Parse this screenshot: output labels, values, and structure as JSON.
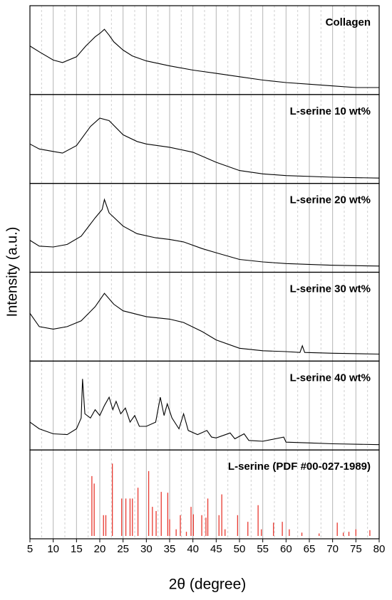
{
  "chart_data": {
    "type": "stacked",
    "xlabel": "2θ (degree)",
    "ylabel": "Intensity (a.u.)",
    "xlim": [
      5,
      80
    ],
    "xticks": [
      5,
      10,
      15,
      20,
      25,
      30,
      35,
      40,
      45,
      50,
      55,
      60,
      65,
      70,
      75,
      80
    ],
    "grid": true,
    "minor_grid": true,
    "panels": [
      {
        "type": "line",
        "title": "Collagen",
        "color": "#000000",
        "ylim": [
          0,
          100
        ],
        "x": [
          5,
          7,
          10,
          12,
          15,
          17,
          19,
          20,
          21,
          22,
          23,
          25,
          27,
          30,
          35,
          40,
          45,
          50,
          55,
          60,
          65,
          70,
          75,
          80
        ],
        "values": [
          55,
          48,
          38,
          35,
          42,
          55,
          66,
          70,
          75,
          68,
          60,
          50,
          43,
          37,
          31,
          26,
          22,
          18,
          14,
          11,
          9,
          7,
          5,
          5
        ]
      },
      {
        "type": "line",
        "title": "L-serine 10 wt%",
        "color": "#000000",
        "ylim": [
          0,
          100
        ],
        "x": [
          5,
          7,
          10,
          12,
          15,
          18,
          20,
          22,
          25,
          28,
          30,
          35,
          40,
          45,
          50,
          55,
          60,
          70,
          80
        ],
        "values": [
          44,
          38,
          35,
          33,
          42,
          65,
          75,
          72,
          55,
          47,
          44,
          40,
          34,
          22,
          12,
          8,
          6,
          4,
          3
        ]
      },
      {
        "type": "line",
        "title": "L-serine 20 wt%",
        "color": "#000000",
        "ylim": [
          0,
          100
        ],
        "x": [
          5,
          7,
          10,
          13,
          16,
          19,
          20.5,
          21,
          22,
          25,
          28,
          32,
          35,
          38,
          42,
          45,
          50,
          55,
          60,
          70,
          80
        ],
        "values": [
          35,
          28,
          27,
          30,
          40,
          62,
          72,
          84,
          68,
          52,
          43,
          38,
          36,
          33,
          25,
          20,
          12,
          9,
          7,
          5,
          4
        ]
      },
      {
        "type": "line",
        "title": "L-serine 30 wt%",
        "color": "#000000",
        "ylim": [
          0,
          100
        ],
        "x": [
          5,
          7,
          10,
          13,
          16,
          19,
          21,
          23,
          25,
          30,
          35,
          38,
          42,
          45,
          50,
          55,
          60,
          63,
          63.5,
          64,
          70,
          80
        ],
        "values": [
          54,
          38,
          35,
          38,
          45,
          62,
          78,
          65,
          57,
          50,
          47,
          43,
          32,
          22,
          12,
          9,
          8,
          7,
          15,
          7,
          6,
          5
        ]
      },
      {
        "type": "line",
        "title": "L-serine 40 wt%",
        "color": "#000000",
        "ylim": [
          0,
          100
        ],
        "x": [
          5,
          7,
          10,
          13,
          15,
          16,
          16.3,
          16.8,
          18,
          19,
          20,
          21,
          22,
          22.8,
          23.5,
          24.5,
          25.5,
          26.5,
          27.5,
          28.5,
          30,
          32,
          33,
          33.8,
          34.5,
          35.5,
          37,
          38,
          39,
          41,
          43,
          44,
          45,
          48,
          49,
          51,
          52,
          55,
          59.5,
          60,
          65,
          70,
          80
        ],
        "values": [
          30,
          22,
          16,
          15,
          22,
          35,
          82,
          40,
          35,
          45,
          38,
          50,
          60,
          45,
          55,
          40,
          47,
          30,
          38,
          25,
          25,
          30,
          60,
          38,
          52,
          35,
          22,
          40,
          20,
          15,
          20,
          12,
          11,
          17,
          10,
          16,
          8,
          7,
          12,
          6,
          5,
          4,
          3
        ]
      },
      {
        "type": "stick",
        "title": "L-serine (PDF #00-027-1989)",
        "color": "#e8382f",
        "ylim": [
          0,
          100
        ],
        "x": [
          18.3,
          18.8,
          20.8,
          21.3,
          22.7,
          24.7,
          25.6,
          26.5,
          27.0,
          28.2,
          30.5,
          31.3,
          32.1,
          33.2,
          34.6,
          35.0,
          36.4,
          37.3,
          38.6,
          39.6,
          40.1,
          41.9,
          42.8,
          43.2,
          45.6,
          46.2,
          46.9,
          49.6,
          51.8,
          54.0,
          54.7,
          57.3,
          59.2,
          60.7,
          63.4,
          67.1,
          71.0,
          72.3,
          73.5,
          75.0,
          78.0
        ],
        "values": [
          72,
          63,
          25,
          25,
          87,
          45,
          45,
          45,
          45,
          58,
          78,
          35,
          30,
          53,
          52,
          20,
          8,
          25,
          5,
          35,
          26,
          25,
          22,
          45,
          25,
          50,
          8,
          25,
          17,
          37,
          8,
          16,
          17,
          8,
          4,
          3,
          16,
          4,
          5,
          8,
          7
        ]
      }
    ]
  }
}
